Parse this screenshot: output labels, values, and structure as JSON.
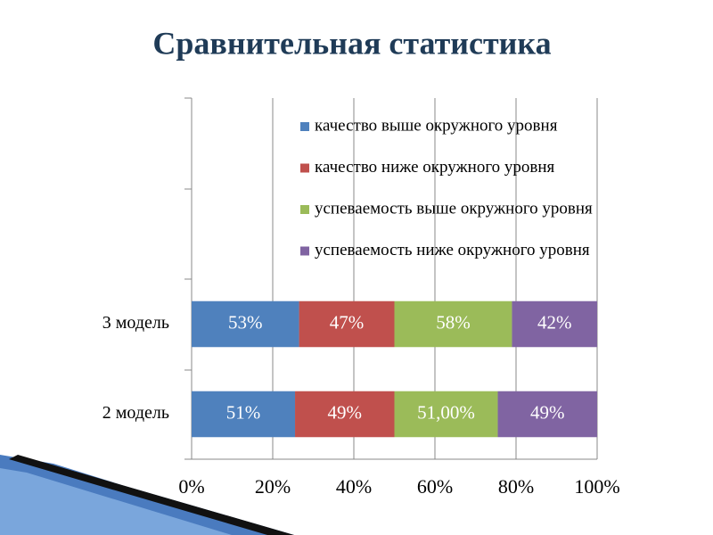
{
  "chart_data": {
    "type": "bar",
    "orientation": "horizontal",
    "stacked": "percent",
    "title": "Сравнительная статистика",
    "categories": [
      "3 модель",
      "2 модель"
    ],
    "series": [
      {
        "name": "качество выше окружного уровня",
        "color": "#4f81bd",
        "values": [
          53,
          51
        ],
        "value_labels": [
          "53%",
          "51%"
        ]
      },
      {
        "name": "качество ниже окружного уровня",
        "color": "#c0504d",
        "values": [
          47,
          49
        ],
        "value_labels": [
          "47%",
          "49%"
        ]
      },
      {
        "name": "успеваемость выше окружного уровня",
        "color": "#9bbb59",
        "values": [
          58,
          51
        ],
        "value_labels": [
          "58%",
          "51,00%"
        ]
      },
      {
        "name": "успеваемость ниже окружного уровня",
        "color": "#8064a2",
        "values": [
          42,
          49
        ],
        "value_labels": [
          "42%",
          "49%"
        ]
      }
    ],
    "xlim": [
      0,
      100
    ],
    "xticks": [
      {
        "value": 0,
        "label": "0%"
      },
      {
        "value": 20,
        "label": "20%"
      },
      {
        "value": 40,
        "label": "40%"
      },
      {
        "value": 60,
        "label": "60%"
      },
      {
        "value": 80,
        "label": "80%"
      },
      {
        "value": 100,
        "label": "100%"
      }
    ],
    "grid": true,
    "legend": "top-right"
  }
}
